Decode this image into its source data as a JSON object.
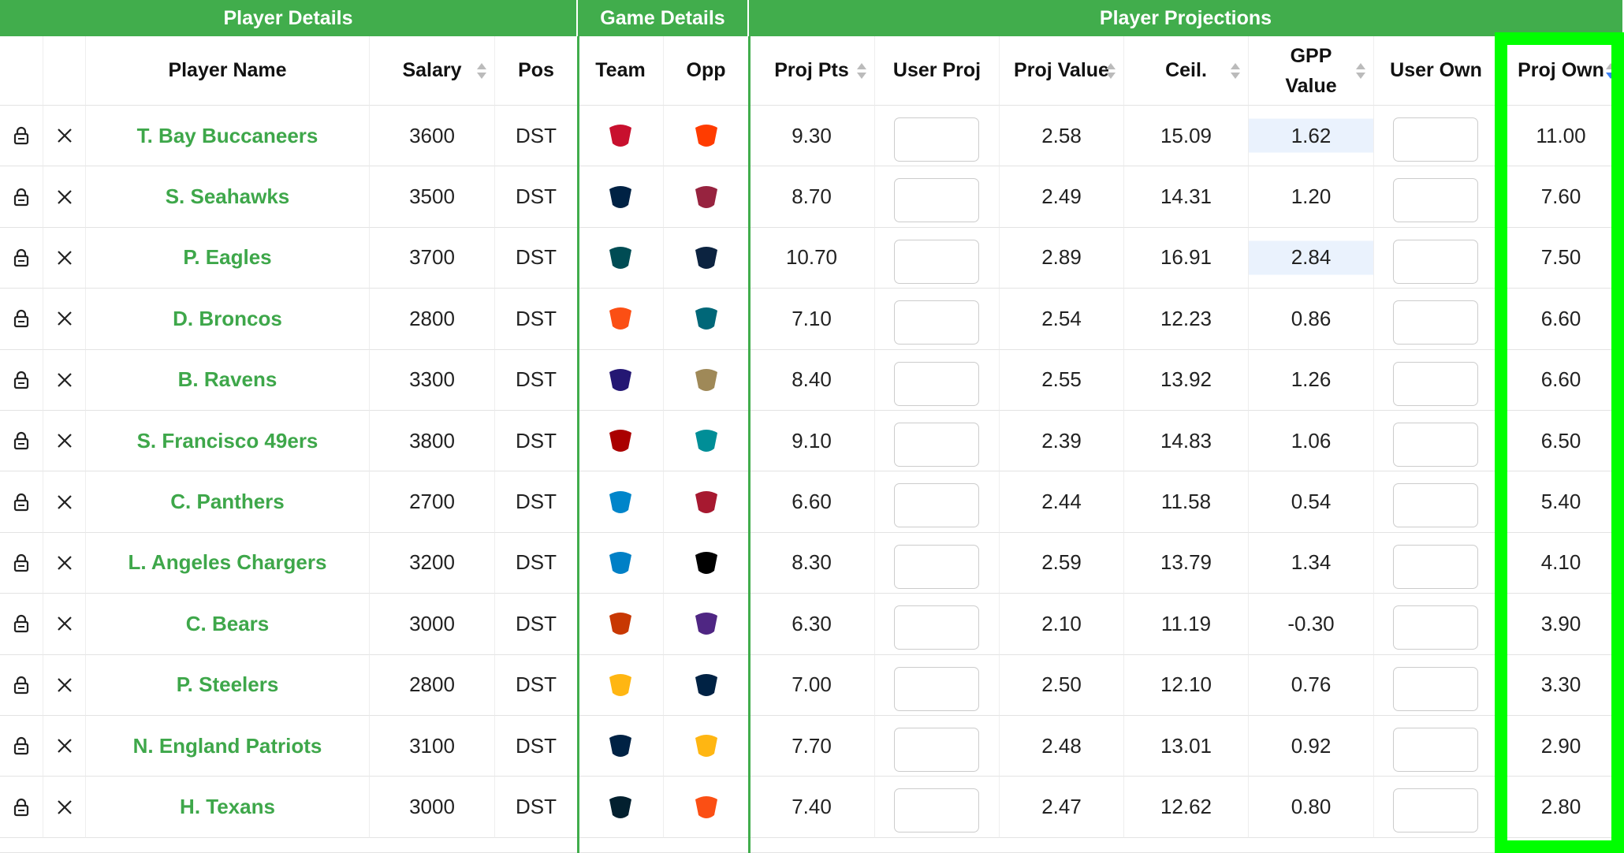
{
  "header_groups": [
    "Player Details",
    "Game Details",
    "Player Projections"
  ],
  "columns": [
    "Player Name",
    "Salary",
    "Pos",
    "Team",
    "Opp",
    "Proj Pts",
    "User Proj",
    "Proj Value",
    "Ceil.",
    "GPP Value",
    "User Own",
    "Proj Own"
  ],
  "rows": [
    {
      "name": "T. Bay Buccaneers",
      "salary": "3600",
      "pos": "DST",
      "proj_pts": "9.30",
      "proj_value": "2.58",
      "ceil": "15.09",
      "gpp_value": "1.62",
      "proj_own": "11.00"
    },
    {
      "name": "S. Seahawks",
      "salary": "3500",
      "pos": "DST",
      "proj_pts": "8.70",
      "proj_value": "2.49",
      "ceil": "14.31",
      "gpp_value": "1.20",
      "proj_own": "7.60"
    },
    {
      "name": "P. Eagles",
      "salary": "3700",
      "pos": "DST",
      "proj_pts": "10.70",
      "proj_value": "2.89",
      "ceil": "16.91",
      "gpp_value": "2.84",
      "proj_own": "7.50"
    },
    {
      "name": "D. Broncos",
      "salary": "2800",
      "pos": "DST",
      "proj_pts": "7.10",
      "proj_value": "2.54",
      "ceil": "12.23",
      "gpp_value": "0.86",
      "proj_own": "6.60"
    },
    {
      "name": "B. Ravens",
      "salary": "3300",
      "pos": "DST",
      "proj_pts": "8.40",
      "proj_value": "2.55",
      "ceil": "13.92",
      "gpp_value": "1.26",
      "proj_own": "6.60"
    },
    {
      "name": "S. Francisco 49ers",
      "salary": "3800",
      "pos": "DST",
      "proj_pts": "9.10",
      "proj_value": "2.39",
      "ceil": "14.83",
      "gpp_value": "1.06",
      "proj_own": "6.50"
    },
    {
      "name": "C. Panthers",
      "salary": "2700",
      "pos": "DST",
      "proj_pts": "6.60",
      "proj_value": "2.44",
      "ceil": "11.58",
      "gpp_value": "0.54",
      "proj_own": "5.40"
    },
    {
      "name": "L. Angeles Chargers",
      "salary": "3200",
      "pos": "DST",
      "proj_pts": "8.30",
      "proj_value": "2.59",
      "ceil": "13.79",
      "gpp_value": "1.34",
      "proj_own": "4.10"
    },
    {
      "name": "C. Bears",
      "salary": "3000",
      "pos": "DST",
      "proj_pts": "6.30",
      "proj_value": "2.10",
      "ceil": "11.19",
      "gpp_value": "-0.30",
      "proj_own": "3.90"
    },
    {
      "name": "P. Steelers",
      "salary": "2800",
      "pos": "DST",
      "proj_pts": "7.00",
      "proj_value": "2.50",
      "ceil": "12.10",
      "gpp_value": "0.76",
      "proj_own": "3.30"
    },
    {
      "name": "N. England Patriots",
      "salary": "3100",
      "pos": "DST",
      "proj_pts": "7.70",
      "proj_value": "2.48",
      "ceil": "13.01",
      "gpp_value": "0.92",
      "proj_own": "2.90"
    },
    {
      "name": "H. Texans",
      "salary": "3000",
      "pos": "DST",
      "proj_pts": "7.40",
      "proj_value": "2.47",
      "ceil": "12.62",
      "gpp_value": "0.80",
      "proj_own": "2.80"
    }
  ]
}
